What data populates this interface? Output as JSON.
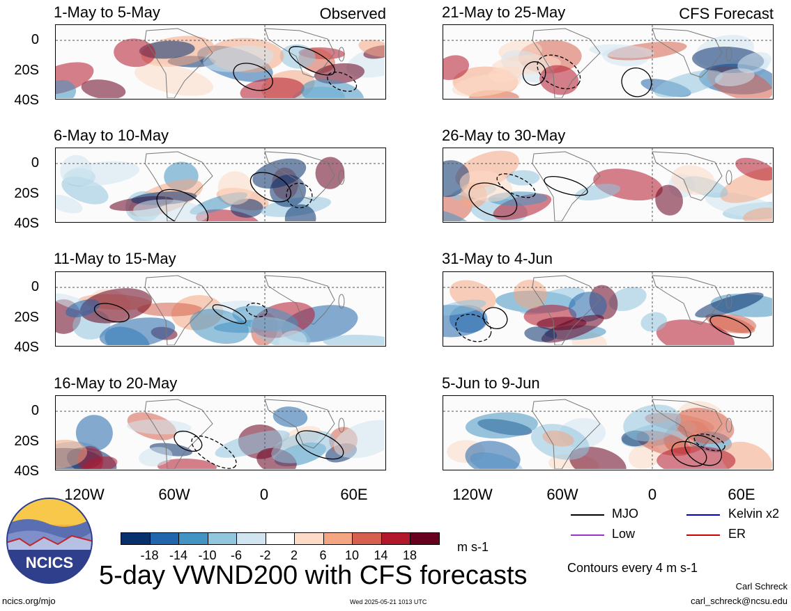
{
  "panels_left": [
    {
      "title": "1-May to 5-May",
      "corner": "Observed"
    },
    {
      "title": "6-May to 10-May",
      "corner": ""
    },
    {
      "title": "11-May to 15-May",
      "corner": ""
    },
    {
      "title": "16-May to 20-May",
      "corner": ""
    }
  ],
  "panels_right": [
    {
      "title": "21-May to 25-May",
      "corner": "CFS Forecast"
    },
    {
      "title": "26-May to 30-May",
      "corner": ""
    },
    {
      "title": "31-May to 4-Jun",
      "corner": ""
    },
    {
      "title": "5-Jun to 9-Jun",
      "corner": ""
    }
  ],
  "y_ticks": [
    "0",
    "20S",
    "40S"
  ],
  "x_ticks": [
    "120W",
    "60W",
    "0",
    "60E"
  ],
  "colorbar": {
    "colors": [
      "#08306b",
      "#2166ac",
      "#4393c3",
      "#92c5de",
      "#d1e5f0",
      "#ffffff",
      "#fddbc7",
      "#f4a582",
      "#d6604d",
      "#b2182b",
      "#67001f"
    ],
    "labels": [
      "-18",
      "-14",
      "-10",
      "-6",
      "-2",
      "2",
      "6",
      "10",
      "14",
      "18"
    ],
    "unit": "m s-1"
  },
  "legend": {
    "mjo": {
      "label": "MJO",
      "color": "#000000"
    },
    "kelvin": {
      "label": "Kelvin x2",
      "color": "#0000cc"
    },
    "low": {
      "label": "Low",
      "color": "#9933cc"
    },
    "er": {
      "label": "ER",
      "color": "#cc0000"
    },
    "contours_note": "Contours every 4 m s-1"
  },
  "logo_text": "NCICS",
  "main_title": "5-day VWND200 with CFS forecasts",
  "footer_left": "ncics.org/mjo",
  "footer_center": "Wed 2025-05-21 1013 UTC",
  "author_name": "Carl Schreck",
  "author_email": "carl_schreck@ncsu.edu"
}
